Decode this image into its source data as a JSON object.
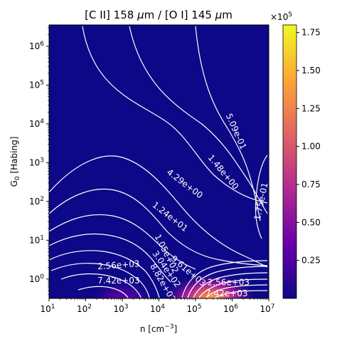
{
  "chart_data": {
    "type": "heatmap",
    "title_parts": [
      "[C II] 158 ",
      "μ",
      "m / [O I] 145 ",
      "μ",
      "m"
    ],
    "xlabel": "n [cm",
    "xlabel_sup": "−3",
    "xlabel_close": "]",
    "ylabel_main": "G",
    "ylabel_sub": "0",
    "ylabel_rest": " [Habing]",
    "x_scale": "log",
    "y_scale": "log",
    "xlim": [
      1,
      7
    ],
    "ylim": [
      -0.5,
      6.55
    ],
    "x_ticks": [
      {
        "exp": 1,
        "base": "10",
        "sup": "1"
      },
      {
        "exp": 2,
        "base": "10",
        "sup": "2"
      },
      {
        "exp": 3,
        "base": "10",
        "sup": "3"
      },
      {
        "exp": 4,
        "base": "10",
        "sup": "4"
      },
      {
        "exp": 5,
        "base": "10",
        "sup": "5"
      },
      {
        "exp": 6,
        "base": "10",
        "sup": "6"
      },
      {
        "exp": 7,
        "base": "10",
        "sup": "7"
      }
    ],
    "y_ticks": [
      {
        "exp": 0,
        "base": "10",
        "sup": "0"
      },
      {
        "exp": 1,
        "base": "10",
        "sup": "1"
      },
      {
        "exp": 2,
        "base": "10",
        "sup": "2"
      },
      {
        "exp": 3,
        "base": "10",
        "sup": "3"
      },
      {
        "exp": 4,
        "base": "10",
        "sup": "4"
      },
      {
        "exp": 5,
        "base": "10",
        "sup": "5"
      },
      {
        "exp": 6,
        "base": "10",
        "sup": "6"
      }
    ],
    "colormap": "plasma",
    "colorbar": {
      "range": [
        0,
        1.8
      ],
      "ticks": [
        "0.25",
        "0.50",
        "0.75",
        "1.00",
        "1.25",
        "1.50",
        "1.75"
      ],
      "tick_values": [
        0.25,
        0.5,
        0.75,
        1.0,
        1.25,
        1.5,
        1.75
      ],
      "offset_base": "×10",
      "offset_sup": "5"
    },
    "hotspots": [
      {
        "log_n": 3.0,
        "log_g": -0.5,
        "level": 0.18
      },
      {
        "log_n": 5.4,
        "log_g": -0.5,
        "level": 0.55
      }
    ],
    "contour_labels": [
      {
        "text": "5.09e-01",
        "log_n": 6.1,
        "log_g": 3.8,
        "angle": 66
      },
      {
        "text": "1.48e+00",
        "log_n": 5.75,
        "log_g": 2.75,
        "angle": 50
      },
      {
        "text": "1.75e-01",
        "log_n": 6.8,
        "log_g": 2.0,
        "angle": -78
      },
      {
        "text": "4.29e+00",
        "log_n": 4.7,
        "log_g": 2.45,
        "angle": 37
      },
      {
        "text": "1.24e+01",
        "log_n": 4.3,
        "log_g": 1.6,
        "angle": 38
      },
      {
        "text": "1.05e+02",
        "log_n": 4.2,
        "log_g": 0.65,
        "angle": 63
      },
      {
        "text": "3.04e+02",
        "log_n": 4.2,
        "log_g": 0.25,
        "angle": 55
      },
      {
        "text": "8.82e+02",
        "log_n": 4.1,
        "log_g": -0.1,
        "angle": 60
      },
      {
        "text": "9.61e+03",
        "log_n": 4.8,
        "log_g": 0.2,
        "angle": 40
      },
      {
        "text": "2.56e+03",
        "log_n": 2.9,
        "log_g": 0.35,
        "angle": -4
      },
      {
        "text": "7.42e+03",
        "log_n": 2.9,
        "log_g": -0.05,
        "angle": 0
      },
      {
        "text": "2.56e+03",
        "log_n": 5.9,
        "log_g": -0.1,
        "angle": 0
      },
      {
        "text": "7.42e+03",
        "log_n": 5.85,
        "log_g": -0.38,
        "angle": 0
      }
    ]
  }
}
